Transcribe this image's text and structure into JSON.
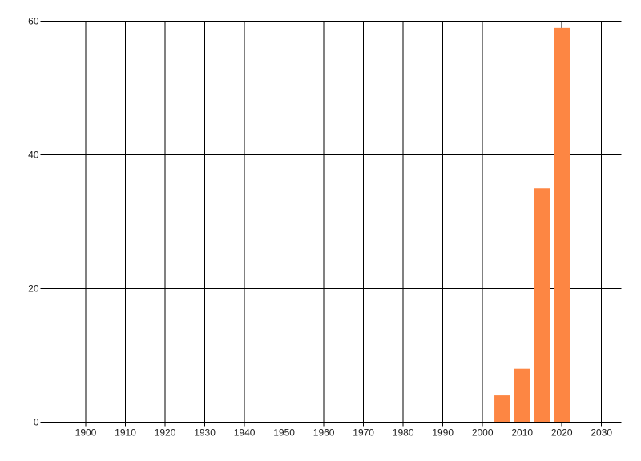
{
  "chart_data": {
    "type": "bar",
    "x": [
      2005,
      2010,
      2015,
      2020
    ],
    "values": [
      4,
      8,
      35,
      59
    ],
    "bar_width_years": 4,
    "bar_color": "#fd8643",
    "x_ticks": [
      1900,
      1910,
      1920,
      1930,
      1940,
      1950,
      1960,
      1970,
      1980,
      1990,
      2000,
      2010,
      2020,
      2030
    ],
    "y_ticks": [
      0,
      20,
      40,
      60
    ],
    "xlim": [
      1890,
      2035
    ],
    "ylim": [
      0,
      60
    ],
    "grid": true,
    "legend_position": "none"
  },
  "colors": {
    "background": "#ffffff",
    "gridline": "#000000",
    "tick_text": "#1a1a1a",
    "bar": "#fd8643"
  }
}
